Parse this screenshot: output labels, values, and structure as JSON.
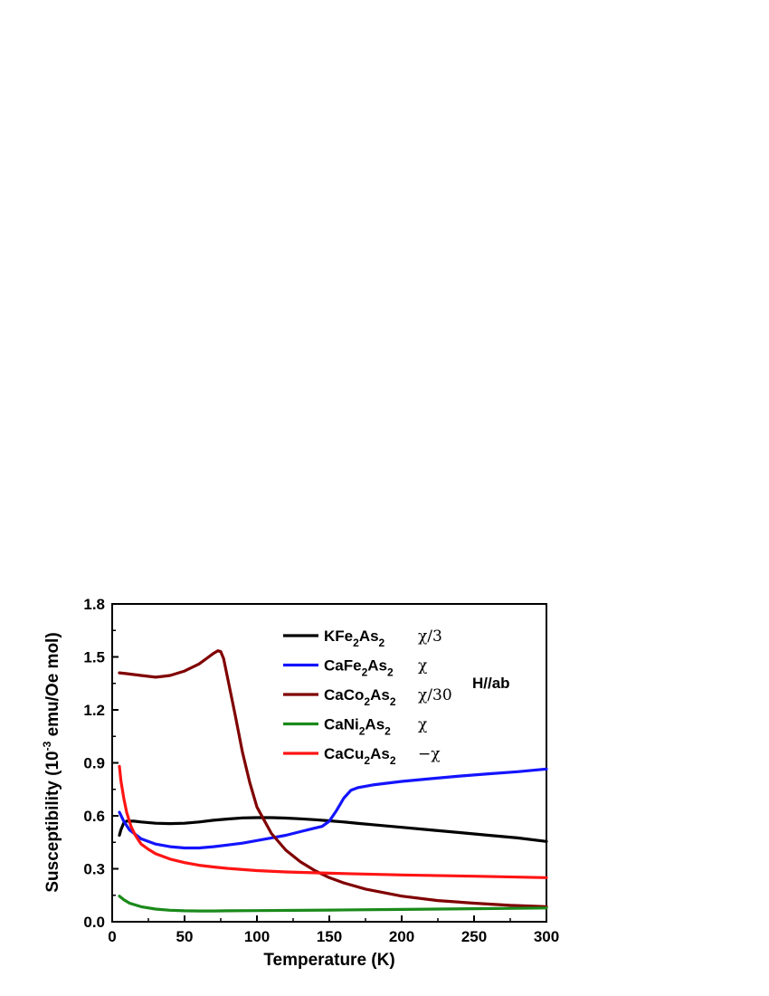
{
  "chart_data": {
    "type": "line",
    "xlabel": "Temperature  (K)",
    "ylabel_parts": [
      "Susceptibility (10",
      "-3",
      " emu/Oe mol)"
    ],
    "xlim": [
      0,
      300
    ],
    "ylim": [
      0,
      1.8
    ],
    "x_ticks": [
      0,
      50,
      100,
      150,
      200,
      250,
      300
    ],
    "y_ticks": [
      0.0,
      0.3,
      0.6,
      0.9,
      1.2,
      1.5,
      1.8
    ],
    "x_tick_labels": [
      "0",
      "50",
      "100",
      "150",
      "200",
      "250",
      "300"
    ],
    "y_tick_labels": [
      "0.0",
      "0.3",
      "0.6",
      "0.9",
      "1.2",
      "1.5",
      "1.8"
    ],
    "grid": false,
    "legend_position": "top-right",
    "annotation": "H//ab",
    "series": [
      {
        "name_parts": [
          [
            "KFe",
            false
          ],
          [
            "2",
            true
          ],
          [
            "As",
            false
          ],
          [
            "2",
            true
          ]
        ],
        "scale": "χ/3",
        "color": "#000000",
        "x": [
          5,
          6,
          8,
          10,
          15,
          20,
          30,
          40,
          50,
          60,
          70,
          80,
          90,
          100,
          110,
          120,
          130,
          140,
          150,
          160,
          170,
          180,
          200,
          220,
          240,
          260,
          280,
          300
        ],
        "y": [
          0.49,
          0.52,
          0.56,
          0.57,
          0.57,
          0.565,
          0.558,
          0.556,
          0.558,
          0.565,
          0.575,
          0.582,
          0.588,
          0.59,
          0.59,
          0.587,
          0.583,
          0.578,
          0.572,
          0.565,
          0.557,
          0.55,
          0.535,
          0.52,
          0.505,
          0.49,
          0.475,
          0.455
        ]
      },
      {
        "name_parts": [
          [
            "CaFe",
            false
          ],
          [
            "2",
            true
          ],
          [
            "As",
            false
          ],
          [
            "2",
            true
          ]
        ],
        "scale": "χ",
        "color": "#1414ff",
        "x": [
          5,
          8,
          12,
          20,
          30,
          40,
          50,
          60,
          70,
          80,
          90,
          100,
          110,
          120,
          130,
          140,
          145,
          150,
          155,
          160,
          165,
          170,
          180,
          200,
          220,
          240,
          260,
          280,
          300
        ],
        "y": [
          0.62,
          0.57,
          0.52,
          0.47,
          0.44,
          0.425,
          0.418,
          0.418,
          0.425,
          0.435,
          0.445,
          0.46,
          0.475,
          0.49,
          0.51,
          0.53,
          0.54,
          0.57,
          0.63,
          0.7,
          0.745,
          0.76,
          0.775,
          0.795,
          0.81,
          0.825,
          0.838,
          0.85,
          0.865
        ]
      },
      {
        "name_parts": [
          [
            "CaCo",
            false
          ],
          [
            "2",
            true
          ],
          [
            "As",
            false
          ],
          [
            "2",
            true
          ]
        ],
        "scale": "χ/30",
        "color": "#800000",
        "x": [
          5,
          10,
          20,
          30,
          35,
          40,
          50,
          60,
          65,
          70,
          73,
          75,
          77,
          80,
          85,
          90,
          95,
          100,
          110,
          120,
          130,
          140,
          150,
          160,
          175,
          200,
          225,
          250,
          275,
          300
        ],
        "y": [
          1.41,
          1.405,
          1.395,
          1.385,
          1.39,
          1.395,
          1.42,
          1.46,
          1.49,
          1.52,
          1.535,
          1.53,
          1.49,
          1.37,
          1.17,
          0.96,
          0.79,
          0.65,
          0.5,
          0.405,
          0.34,
          0.29,
          0.25,
          0.22,
          0.185,
          0.145,
          0.12,
          0.105,
          0.093,
          0.085
        ]
      },
      {
        "name_parts": [
          [
            "CaNi",
            false
          ],
          [
            "2",
            true
          ],
          [
            "As",
            false
          ],
          [
            "2",
            true
          ]
        ],
        "scale": "χ",
        "color": "#1a8a1a",
        "x": [
          5,
          8,
          12,
          20,
          30,
          40,
          50,
          60,
          70,
          80,
          100,
          150,
          200,
          250,
          300
        ],
        "y": [
          0.145,
          0.125,
          0.105,
          0.085,
          0.072,
          0.065,
          0.062,
          0.061,
          0.061,
          0.062,
          0.063,
          0.066,
          0.07,
          0.074,
          0.078
        ]
      },
      {
        "name_parts": [
          [
            "CaCu",
            false
          ],
          [
            "2",
            true
          ],
          [
            "As",
            false
          ],
          [
            "2",
            true
          ]
        ],
        "scale": "−χ",
        "color": "#ff1414",
        "x": [
          5,
          6,
          8,
          10,
          13,
          16,
          20,
          25,
          30,
          40,
          50,
          60,
          70,
          80,
          100,
          120,
          150,
          200,
          250,
          300
        ],
        "y": [
          0.88,
          0.8,
          0.7,
          0.62,
          0.54,
          0.49,
          0.44,
          0.41,
          0.385,
          0.355,
          0.335,
          0.32,
          0.31,
          0.302,
          0.29,
          0.282,
          0.275,
          0.265,
          0.258,
          0.25
        ]
      }
    ]
  }
}
